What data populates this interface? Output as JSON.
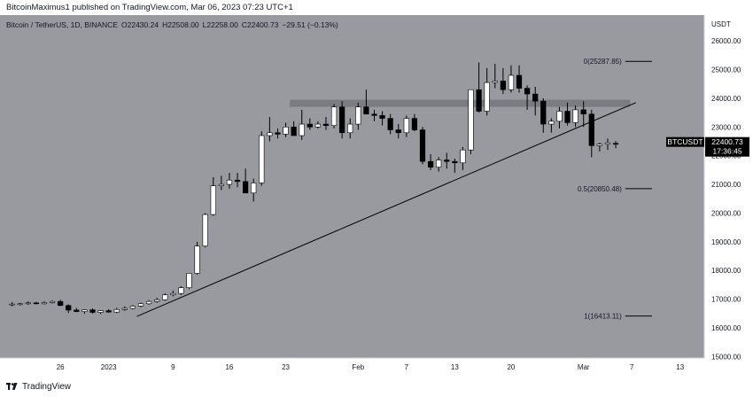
{
  "header": {
    "text": "BitcoinMaximus1 published on TradingView.com, Mar 06, 2023 07:23 UTC+1"
  },
  "footer": {
    "logo_text": "TradingView"
  },
  "colors": {
    "background": "#999aa0",
    "up_candle": "#ffffff",
    "down_candle": "#000000",
    "wick": "#000000",
    "resistance_zone": "#7b7c81",
    "trendline": "#000000",
    "axis_bg": "#ffffff",
    "price_label_bg": "#000000"
  },
  "chart_data": {
    "type": "candlestick",
    "symbol_line": {
      "name": "Bitcoin / TetherUS, 1D, BINANCE",
      "open_label": "O",
      "open": "22430.24",
      "high_label": "H",
      "high": "22508.00",
      "low_label": "L",
      "low": "22258.00",
      "close_label": "C",
      "close": "22400.73",
      "change": "−29.51 (−0.13%)"
    },
    "y_axis": {
      "currency": "USDT",
      "ticks": [
        "26000.00",
        "25000.00",
        "24000.00",
        "23000.00",
        "22000.00",
        "21000.00",
        "20000.00",
        "19000.00",
        "18000.00",
        "17000.00",
        "16000.00",
        "15000.00"
      ],
      "tick_values": [
        26000,
        25000,
        24000,
        23000,
        22000,
        21000,
        20000,
        19000,
        18000,
        17000,
        16000,
        15000
      ],
      "ylim": [
        14950,
        26900
      ]
    },
    "x_axis": {
      "ticks": [
        {
          "label": "26",
          "day": -6
        },
        {
          "label": "2023",
          "day": 0
        },
        {
          "label": "9",
          "day": 8
        },
        {
          "label": "16",
          "day": 15
        },
        {
          "label": "23",
          "day": 22
        },
        {
          "label": "Feb",
          "day": 31
        },
        {
          "label": "7",
          "day": 37
        },
        {
          "label": "13",
          "day": 43
        },
        {
          "label": "20",
          "day": 50
        },
        {
          "label": "Mar",
          "day": 59
        },
        {
          "label": "7",
          "day": 65
        },
        {
          "label": "13",
          "day": 71
        }
      ],
      "xlim": [
        -13.5,
        74
      ]
    },
    "candles": [
      {
        "d": -12,
        "o": 16820,
        "h": 16900,
        "l": 16750,
        "c": 16830
      },
      {
        "d": -11,
        "o": 16830,
        "h": 16870,
        "l": 16780,
        "c": 16840
      },
      {
        "d": -10,
        "o": 16840,
        "h": 16920,
        "l": 16800,
        "c": 16870
      },
      {
        "d": -9,
        "o": 16870,
        "h": 16910,
        "l": 16820,
        "c": 16840
      },
      {
        "d": -8,
        "o": 16840,
        "h": 16930,
        "l": 16810,
        "c": 16880
      },
      {
        "d": -7,
        "o": 16880,
        "h": 16960,
        "l": 16850,
        "c": 16920
      },
      {
        "d": -6,
        "o": 16920,
        "h": 16980,
        "l": 16760,
        "c": 16780
      },
      {
        "d": -5,
        "o": 16780,
        "h": 16820,
        "l": 16520,
        "c": 16620
      },
      {
        "d": -4,
        "o": 16620,
        "h": 16690,
        "l": 16550,
        "c": 16570
      },
      {
        "d": -3,
        "o": 16570,
        "h": 16650,
        "l": 16490,
        "c": 16630
      },
      {
        "d": -2,
        "o": 16630,
        "h": 16680,
        "l": 16500,
        "c": 16540
      },
      {
        "d": -1,
        "o": 16540,
        "h": 16620,
        "l": 16480,
        "c": 16600
      },
      {
        "d": 0,
        "o": 16600,
        "h": 16650,
        "l": 16530,
        "c": 16550
      },
      {
        "d": 1,
        "o": 16550,
        "h": 16700,
        "l": 16520,
        "c": 16640
      },
      {
        "d": 2,
        "o": 16640,
        "h": 16750,
        "l": 16600,
        "c": 16680
      },
      {
        "d": 3,
        "o": 16680,
        "h": 16800,
        "l": 16640,
        "c": 16760
      },
      {
        "d": 4,
        "o": 16760,
        "h": 16880,
        "l": 16720,
        "c": 16840
      },
      {
        "d": 5,
        "o": 16840,
        "h": 16970,
        "l": 16800,
        "c": 16920
      },
      {
        "d": 6,
        "o": 16920,
        "h": 17050,
        "l": 16880,
        "c": 16980
      },
      {
        "d": 7,
        "o": 16980,
        "h": 17200,
        "l": 16950,
        "c": 17150
      },
      {
        "d": 8,
        "o": 17150,
        "h": 17300,
        "l": 17100,
        "c": 17200
      },
      {
        "d": 9,
        "o": 17200,
        "h": 17450,
        "l": 17150,
        "c": 17400
      },
      {
        "d": 10,
        "o": 17400,
        "h": 17900,
        "l": 17350,
        "c": 17900
      },
      {
        "d": 11,
        "o": 17900,
        "h": 19000,
        "l": 17850,
        "c": 18850
      },
      {
        "d": 12,
        "o": 18850,
        "h": 20000,
        "l": 18800,
        "c": 19950
      },
      {
        "d": 13,
        "o": 19950,
        "h": 21250,
        "l": 19900,
        "c": 20950
      },
      {
        "d": 14,
        "o": 20950,
        "h": 21300,
        "l": 20800,
        "c": 21000
      },
      {
        "d": 15,
        "o": 21000,
        "h": 21400,
        "l": 20850,
        "c": 21150
      },
      {
        "d": 16,
        "o": 21150,
        "h": 21400,
        "l": 20900,
        "c": 21100
      },
      {
        "d": 17,
        "o": 21100,
        "h": 21550,
        "l": 20700,
        "c": 20700
      },
      {
        "d": 18,
        "o": 20700,
        "h": 21200,
        "l": 20400,
        "c": 21050
      },
      {
        "d": 19,
        "o": 21050,
        "h": 22850,
        "l": 20950,
        "c": 22700
      },
      {
        "d": 20,
        "o": 22700,
        "h": 23350,
        "l": 22500,
        "c": 22800
      },
      {
        "d": 21,
        "o": 22800,
        "h": 22950,
        "l": 22600,
        "c": 22750
      },
      {
        "d": 22,
        "o": 22750,
        "h": 23150,
        "l": 22650,
        "c": 23000
      },
      {
        "d": 23,
        "o": 23000,
        "h": 23200,
        "l": 22700,
        "c": 22700
      },
      {
        "d": 24,
        "o": 22700,
        "h": 23600,
        "l": 22550,
        "c": 23100
      },
      {
        "d": 25,
        "o": 23100,
        "h": 23300,
        "l": 22900,
        "c": 23000
      },
      {
        "d": 26,
        "o": 23000,
        "h": 23200,
        "l": 22950,
        "c": 23100
      },
      {
        "d": 27,
        "o": 23100,
        "h": 23350,
        "l": 22900,
        "c": 23050
      },
      {
        "d": 28,
        "o": 23050,
        "h": 23800,
        "l": 22950,
        "c": 23700
      },
      {
        "d": 29,
        "o": 23700,
        "h": 23900,
        "l": 22600,
        "c": 22800
      },
      {
        "d": 30,
        "o": 22800,
        "h": 23300,
        "l": 22600,
        "c": 23100
      },
      {
        "d": 31,
        "o": 23100,
        "h": 23850,
        "l": 22900,
        "c": 23700
      },
      {
        "d": 32,
        "o": 23700,
        "h": 24300,
        "l": 23450,
        "c": 23450
      },
      {
        "d": 33,
        "o": 23450,
        "h": 23600,
        "l": 23200,
        "c": 23400
      },
      {
        "d": 34,
        "o": 23400,
        "h": 23550,
        "l": 23050,
        "c": 23300
      },
      {
        "d": 35,
        "o": 23300,
        "h": 23450,
        "l": 22750,
        "c": 22900
      },
      {
        "d": 36,
        "o": 22900,
        "h": 23100,
        "l": 22600,
        "c": 22800
      },
      {
        "d": 37,
        "o": 22800,
        "h": 23400,
        "l": 22650,
        "c": 23300
      },
      {
        "d": 38,
        "o": 23300,
        "h": 23450,
        "l": 22850,
        "c": 22900
      },
      {
        "d": 39,
        "o": 22900,
        "h": 23000,
        "l": 21700,
        "c": 21800
      },
      {
        "d": 40,
        "o": 21800,
        "h": 22050,
        "l": 21500,
        "c": 21600
      },
      {
        "d": 41,
        "o": 21600,
        "h": 21950,
        "l": 21450,
        "c": 21850
      },
      {
        "d": 42,
        "o": 21850,
        "h": 22100,
        "l": 21550,
        "c": 21800
      },
      {
        "d": 43,
        "o": 21800,
        "h": 21900,
        "l": 21400,
        "c": 21750
      },
      {
        "d": 44,
        "o": 21750,
        "h": 22300,
        "l": 21500,
        "c": 22200
      },
      {
        "d": 45,
        "o": 22200,
        "h": 24300,
        "l": 22050,
        "c": 24300
      },
      {
        "d": 46,
        "o": 24300,
        "h": 25250,
        "l": 23500,
        "c": 23550
      },
      {
        "d": 47,
        "o": 23550,
        "h": 25050,
        "l": 23400,
        "c": 24550
      },
      {
        "d": 48,
        "o": 24550,
        "h": 25200,
        "l": 24350,
        "c": 24600
      },
      {
        "d": 49,
        "o": 24600,
        "h": 25050,
        "l": 24150,
        "c": 24300
      },
      {
        "d": 50,
        "o": 24300,
        "h": 25150,
        "l": 24200,
        "c": 24800
      },
      {
        "d": 51,
        "o": 24800,
        "h": 25150,
        "l": 24200,
        "c": 24350
      },
      {
        "d": 52,
        "o": 24350,
        "h": 24450,
        "l": 23600,
        "c": 24150
      },
      {
        "d": 53,
        "o": 24150,
        "h": 24400,
        "l": 23400,
        "c": 23900
      },
      {
        "d": 54,
        "o": 23900,
        "h": 24000,
        "l": 22800,
        "c": 23100
      },
      {
        "d": 55,
        "o": 23100,
        "h": 23300,
        "l": 22800,
        "c": 23200
      },
      {
        "d": 56,
        "o": 23200,
        "h": 23700,
        "l": 22950,
        "c": 23550
      },
      {
        "d": 57,
        "o": 23550,
        "h": 23850,
        "l": 23050,
        "c": 23150
      },
      {
        "d": 58,
        "o": 23150,
        "h": 23750,
        "l": 23000,
        "c": 23600
      },
      {
        "d": 59,
        "o": 23600,
        "h": 23900,
        "l": 23000,
        "c": 23450
      },
      {
        "d": 60,
        "o": 23450,
        "h": 23600,
        "l": 21950,
        "c": 22350
      },
      {
        "d": 61,
        "o": 22350,
        "h": 22450,
        "l": 22150,
        "c": 22400
      },
      {
        "d": 62,
        "o": 22400,
        "h": 22600,
        "l": 22200,
        "c": 22450
      },
      {
        "d": 63,
        "o": 22430,
        "h": 22508,
        "l": 22258,
        "c": 22400
      }
    ],
    "resistance_zone": {
      "y_low": 23700,
      "y_high": 23950,
      "d_start": 22.5,
      "d_end": 64.8
    },
    "trendline": {
      "d1": 3.5,
      "v1": 16400,
      "d2": 65.5,
      "v2": 23850
    },
    "fib_levels": [
      {
        "label": "0(25287.85)",
        "value": 25287.85
      },
      {
        "label": "0.5(20850.48)",
        "value": 20850.48
      },
      {
        "label": "1(16413.11)",
        "value": 16413.11
      }
    ],
    "fib_span": {
      "d_start": 57.8,
      "d_end": 67.5
    },
    "last_price": {
      "symbol": "BTCUSDT",
      "price": "22400.73",
      "countdown": "17:36:45",
      "value": 22400.73
    }
  }
}
